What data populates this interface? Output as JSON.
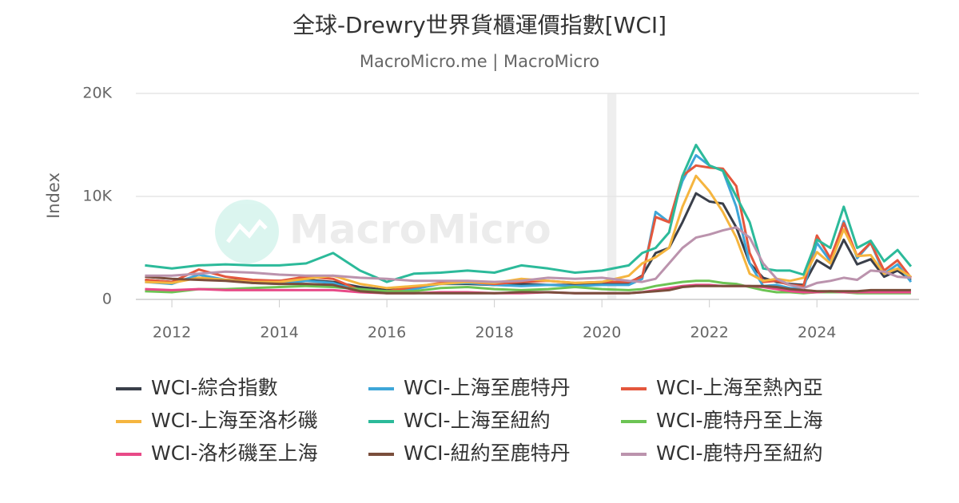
{
  "chart_data": {
    "type": "line",
    "title": "全球-Drewry世界貨櫃運價指數[WCI]",
    "subtitle": "MacroMicro.me | MacroMicro",
    "watermark": "MacroMicro",
    "y_label": "Index",
    "x": [
      2011.5,
      2012,
      2012.5,
      2013,
      2013.5,
      2014,
      2014.5,
      2015,
      2015.5,
      2016,
      2016.5,
      2017,
      2017.5,
      2018,
      2018.5,
      2019,
      2019.5,
      2020,
      2020.5,
      2020.75,
      2021,
      2021.25,
      2021.5,
      2021.75,
      2022,
      2022.25,
      2022.5,
      2022.75,
      2023,
      2023.25,
      2023.5,
      2023.75,
      2024,
      2024.25,
      2024.5,
      2024.75,
      2025,
      2025.25,
      2025.5,
      2025.75
    ],
    "xlim": [
      2011.33,
      2025.9
    ],
    "xticks": [
      2012,
      2014,
      2016,
      2018,
      2020,
      2022,
      2024
    ],
    "ylim": [
      0,
      20000
    ],
    "yticks": [
      0,
      {
        "value": 10000,
        "label": "10K"
      },
      {
        "value": 20000,
        "label": "20K"
      }
    ],
    "grid": true,
    "shaded_range": [
      2020.1,
      2020.27
    ],
    "legend": "bottom",
    "series": [
      {
        "name": "WCI-綜合指數",
        "color": "#3a3f4a",
        "values": [
          1900,
          1700,
          2100,
          1900,
          1800,
          1800,
          1900,
          1700,
          1200,
          900,
          1200,
          1500,
          1500,
          1400,
          1500,
          1400,
          1400,
          1500,
          1600,
          2300,
          4500,
          5000,
          7500,
          10300,
          9500,
          9300,
          7000,
          3500,
          2100,
          1700,
          1500,
          1400,
          3800,
          3000,
          5800,
          3400,
          3900,
          2200,
          2800,
          1900
        ]
      },
      {
        "name": "WCI-上海至鹿特丹",
        "color": "#3ea6d8",
        "values": [
          1700,
          1500,
          2400,
          1900,
          1600,
          1500,
          1800,
          1600,
          800,
          800,
          1000,
          1500,
          1600,
          1400,
          1300,
          1400,
          1300,
          1400,
          1400,
          2000,
          8500,
          7500,
          11500,
          14000,
          13000,
          12500,
          9000,
          3500,
          1300,
          1400,
          1100,
          1000,
          5500,
          3700,
          7600,
          4000,
          5500,
          2500,
          3400,
          1700
        ]
      },
      {
        "name": "WCI-上海至熱內亞",
        "color": "#e4573d",
        "values": [
          1900,
          1700,
          2900,
          2200,
          1900,
          1800,
          2200,
          2000,
          900,
          800,
          1200,
          1600,
          1700,
          1500,
          1700,
          1800,
          1600,
          1700,
          1700,
          2200,
          8000,
          7500,
          12000,
          13000,
          12800,
          12700,
          11000,
          4500,
          1700,
          1800,
          1400,
          1300,
          6200,
          4000,
          7400,
          4200,
          5500,
          2800,
          3800,
          2100
        ]
      },
      {
        "name": "WCI-上海至洛杉磯",
        "color": "#f5b53f",
        "values": [
          1700,
          1600,
          2100,
          1900,
          1700,
          1700,
          2000,
          2300,
          1500,
          1100,
          1300,
          1500,
          1700,
          1600,
          2000,
          1800,
          1600,
          1700,
          2300,
          3500,
          4100,
          5000,
          9000,
          12000,
          10500,
          8500,
          6000,
          2500,
          1800,
          2000,
          1800,
          2100,
          4600,
          3500,
          6800,
          4200,
          4300,
          2500,
          3000,
          2200
        ]
      },
      {
        "name": "WCI-上海至紐約",
        "color": "#2cba9a",
        "values": [
          3300,
          3000,
          3300,
          3400,
          3300,
          3300,
          3500,
          4500,
          2800,
          1700,
          2500,
          2600,
          2800,
          2600,
          3300,
          3000,
          2600,
          2800,
          3300,
          4500,
          5000,
          6500,
          12000,
          15000,
          13000,
          12500,
          10000,
          7500,
          3000,
          2800,
          2800,
          2400,
          5800,
          5000,
          9000,
          5000,
          5700,
          3700,
          4800,
          3200
        ]
      },
      {
        "name": "WCI-鹿特丹至上海",
        "color": "#6cc454",
        "values": [
          800,
          700,
          1000,
          1000,
          1100,
          1200,
          1300,
          1200,
          1000,
          800,
          800,
          1100,
          1200,
          1000,
          900,
          1000,
          1200,
          1000,
          900,
          1000,
          1300,
          1500,
          1700,
          1800,
          1800,
          1600,
          1500,
          1200,
          900,
          700,
          700,
          600,
          700,
          700,
          700,
          600,
          600,
          600,
          600,
          600
        ]
      },
      {
        "name": "WCI-洛杉磯至上海",
        "color": "#e84a88",
        "values": [
          1000,
          900,
          1000,
          900,
          900,
          900,
          900,
          900,
          700,
          600,
          600,
          700,
          700,
          600,
          600,
          700,
          600,
          600,
          600,
          700,
          900,
          1100,
          1300,
          1400,
          1400,
          1300,
          1300,
          1300,
          1200,
          1000,
          800,
          700,
          700,
          800,
          700,
          700,
          700,
          700,
          700,
          700
        ]
      },
      {
        "name": "WCI-紐約至鹿特丹",
        "color": "#7a4e3c",
        "values": [
          2200,
          2000,
          1900,
          1800,
          1600,
          1500,
          1500,
          1400,
          800,
          600,
          600,
          600,
          600,
          600,
          700,
          700,
          600,
          600,
          600,
          700,
          800,
          900,
          1200,
          1300,
          1300,
          1300,
          1300,
          1300,
          1300,
          1200,
          1000,
          900,
          800,
          800,
          800,
          800,
          900,
          900,
          900,
          900
        ]
      },
      {
        "name": "WCI-鹿特丹至紐約",
        "color": "#bb93ad",
        "values": [
          2300,
          2300,
          2500,
          2700,
          2600,
          2400,
          2300,
          2300,
          2100,
          2000,
          1800,
          1800,
          1800,
          1700,
          1800,
          2100,
          2000,
          2100,
          1800,
          1700,
          2000,
          3500,
          5000,
          6000,
          6300,
          6700,
          7000,
          6000,
          3500,
          2000,
          1400,
          1100,
          1600,
          1800,
          2100,
          1900,
          2800,
          2700,
          2200,
          2100
        ]
      }
    ]
  }
}
